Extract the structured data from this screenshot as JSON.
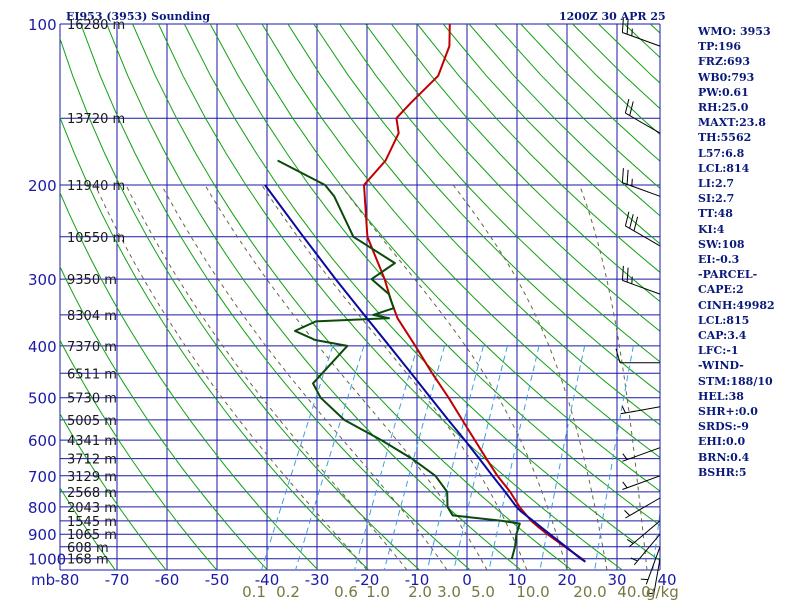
{
  "header": {
    "station_title": "EI953 (3953) Sounding",
    "valid_time": "1200Z 30 APR 25"
  },
  "indices": [
    "WMO: 3953",
    "TP:196",
    "FRZ:693",
    "WB0:793",
    "PW:0.61",
    "RH:25.0",
    "MAXT:23.8",
    "TH:5562",
    "L57:6.8",
    "LCL:814",
    "LI:2.7",
    "SI:2.7",
    "TT:48",
    "KI:4",
    "SW:108",
    "EI:-0.3",
    "-PARCEL-",
    "CAPE:2",
    "CINH:49982",
    "LCL:815",
    "CAP:3.4",
    "LFC:-1",
    "-WIND-",
    "STM:188/10",
    "HEL:38",
    "SHR+:0.0",
    "SRDS:-9",
    "EHI:0.0",
    "BRN:0.4",
    "BSHR:5"
  ],
  "colors": {
    "grid": "#1a1aa8",
    "axis_text": "#1a1aa8",
    "dry_adiabat": "#11a011",
    "moist_adiabat": "#666644",
    "mixing_ratio": "#3fa0e0",
    "temperature": "#c00000",
    "dewpoint": "#0a4a0a",
    "parcel": "#0a0aa0",
    "wind": "#000000",
    "mixing_label": "#777744",
    "index_text": "#0a1a7a"
  },
  "chart_data": {
    "type": "line",
    "title": "EI953 (3953) Sounding",
    "subtitle": "1200Z 30 APR 25",
    "xlabel": "",
    "ylabel": "mb",
    "x_unit": "°C",
    "y_scale": "log",
    "ylim": [
      100,
      1050
    ],
    "xlim": [
      -80,
      40
    ],
    "grid": true,
    "pressure_ticks": [
      100,
      200,
      300,
      400,
      500,
      600,
      700,
      800,
      900,
      1000
    ],
    "pressure_tick_labels": [
      "100",
      "200",
      "300",
      "400",
      "500",
      "600",
      "700",
      "800",
      "900",
      "1000"
    ],
    "temp_ticks": [
      -80,
      -70,
      -60,
      -50,
      -40,
      -30,
      -20,
      -10,
      0,
      10,
      20,
      30,
      40
    ],
    "temp_tick_labels": [
      "-80",
      "-70",
      "-60",
      "-50",
      "-40",
      "-30",
      "-20",
      "-10",
      "0",
      "10",
      "20",
      "30",
      "40"
    ],
    "height_levels": [
      {
        "p": 100,
        "label": "16280 m"
      },
      {
        "p": 150,
        "label": "13720 m"
      },
      {
        "p": 200,
        "label": "11940 m"
      },
      {
        "p": 250,
        "label": "10550 m"
      },
      {
        "p": 300,
        "label": "9350 m"
      },
      {
        "p": 350,
        "label": "8304 m"
      },
      {
        "p": 400,
        "label": "7370 m"
      },
      {
        "p": 450,
        "label": "6511 m"
      },
      {
        "p": 500,
        "label": "5730 m"
      },
      {
        "p": 550,
        "label": "5005 m"
      },
      {
        "p": 600,
        "label": "4341 m"
      },
      {
        "p": 650,
        "label": "3712 m"
      },
      {
        "p": 700,
        "label": "3129 m"
      },
      {
        "p": 750,
        "label": "2568 m"
      },
      {
        "p": 800,
        "label": "2043 m"
      },
      {
        "p": 850,
        "label": "1545 m"
      },
      {
        "p": 900,
        "label": "1065 m"
      },
      {
        "p": 950,
        "label": "608 m"
      },
      {
        "p": 1000,
        "label": "168 m"
      }
    ],
    "mixing_ratio_lines": [
      0.1,
      0.2,
      0.6,
      1.0,
      2.0,
      3.0,
      5.0,
      10.0,
      20.0,
      40.0
    ],
    "mixing_ratio_labels": [
      "0.1",
      "0.2",
      "0.6",
      "1.0",
      "2.0",
      "3.0",
      "5.0",
      "10.0",
      "20.0",
      "40.0"
    ],
    "mixing_ratio_unit": "g/kg",
    "series": [
      {
        "key": "temperature",
        "points": [
          [
            1013,
            22.8
          ],
          [
            1000,
            21.8
          ],
          [
            950,
            17.2
          ],
          [
            900,
            12.4
          ],
          [
            870,
            9.6
          ],
          [
            850,
            7.8
          ],
          [
            800,
            4.0
          ],
          [
            750,
            0.6
          ],
          [
            700,
            -3.6
          ],
          [
            650,
            -7.6
          ],
          [
            600,
            -11.8
          ],
          [
            550,
            -16.4
          ],
          [
            500,
            -21.4
          ],
          [
            450,
            -27.2
          ],
          [
            400,
            -33.4
          ],
          [
            355,
            -39.8
          ],
          [
            330,
            -42.8
          ],
          [
            300,
            -46.4
          ],
          [
            250,
            -54.2
          ],
          [
            200,
            -60.2
          ],
          [
            180,
            -58.4
          ],
          [
            160,
            -58.6
          ],
          [
            150,
            -60.6
          ],
          [
            140,
            -59.2
          ],
          [
            125,
            -56.6
          ],
          [
            110,
            -57.4
          ],
          [
            100,
            -59.6
          ]
        ]
      },
      {
        "key": "dewpoint",
        "points": [
          [
            1000,
            7.8
          ],
          [
            950,
            7.2
          ],
          [
            900,
            6.2
          ],
          [
            860,
            5.8
          ],
          [
            850,
            2.0
          ],
          [
            830,
            -8.5
          ],
          [
            800,
            -10.4
          ],
          [
            750,
            -12.0
          ],
          [
            700,
            -16.0
          ],
          [
            650,
            -22.5
          ],
          [
            600,
            -30.5
          ],
          [
            550,
            -40.0
          ],
          [
            500,
            -47.0
          ],
          [
            470,
            -50.0
          ],
          [
            400,
            -47.0
          ],
          [
            390,
            -54.0
          ],
          [
            375,
            -59.0
          ],
          [
            360,
            -55.8
          ],
          [
            355,
            -41.5
          ],
          [
            350,
            -45.0
          ],
          [
            340,
            -41.6
          ],
          [
            320,
            -44.0
          ],
          [
            300,
            -49.0
          ],
          [
            280,
            -46.0
          ],
          [
            250,
            -57.0
          ],
          [
            210,
            -65.0
          ],
          [
            200,
            -68.0
          ],
          [
            180,
            -80.0
          ]
        ]
      },
      {
        "key": "parcel",
        "points": [
          [
            1013,
            22.8
          ],
          [
            1000,
            21.6
          ],
          [
            950,
            17.4
          ],
          [
            900,
            12.9
          ],
          [
            850,
            8.2
          ],
          [
            814,
            4.6
          ],
          [
            800,
            3.4
          ],
          [
            750,
            -0.4
          ],
          [
            700,
            -4.6
          ],
          [
            650,
            -9.0
          ],
          [
            600,
            -13.8
          ],
          [
            550,
            -19.2
          ],
          [
            500,
            -25.0
          ],
          [
            450,
            -31.4
          ],
          [
            400,
            -38.6
          ],
          [
            350,
            -46.8
          ],
          [
            300,
            -56.2
          ],
          [
            250,
            -67.0
          ],
          [
            200,
            -80.0
          ]
        ]
      }
    ],
    "wind_barbs": [
      {
        "p": 110,
        "dir": 290,
        "spd": 25
      },
      {
        "p": 160,
        "dir": 300,
        "spd": 20
      },
      {
        "p": 210,
        "dir": 290,
        "spd": 25
      },
      {
        "p": 260,
        "dir": 300,
        "spd": 30
      },
      {
        "p": 320,
        "dir": 290,
        "spd": 25
      },
      {
        "p": 430,
        "dir": 270,
        "spd": 10
      },
      {
        "p": 520,
        "dir": 260,
        "spd": 5
      },
      {
        "p": 620,
        "dir": 250,
        "spd": 5
      },
      {
        "p": 700,
        "dir": 250,
        "spd": 5
      },
      {
        "p": 770,
        "dir": 240,
        "spd": 5
      },
      {
        "p": 850,
        "dir": 230,
        "spd": 5
      },
      {
        "p": 900,
        "dir": 220,
        "spd": 5
      },
      {
        "p": 950,
        "dir": 200,
        "spd": 5
      },
      {
        "p": 1000,
        "dir": 190,
        "spd": 5
      }
    ]
  }
}
